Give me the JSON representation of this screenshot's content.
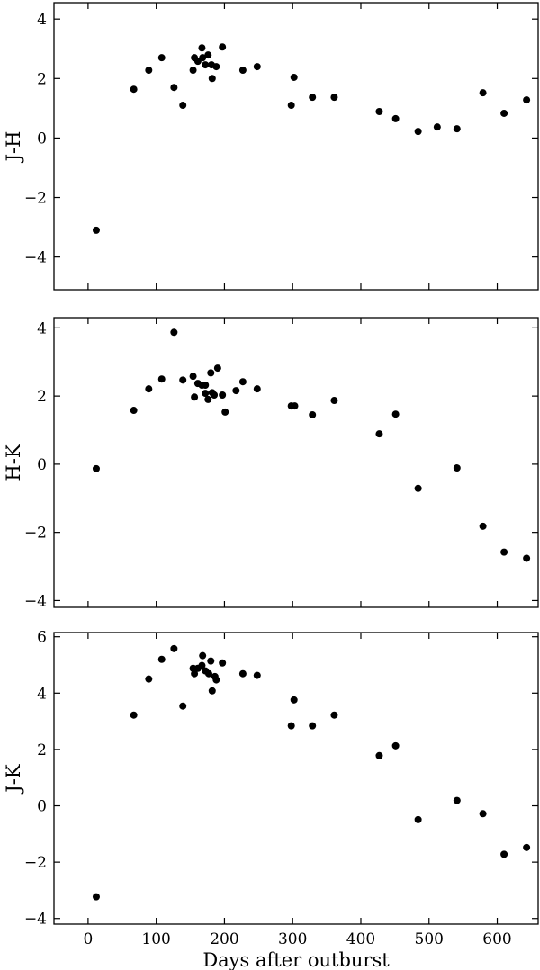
{
  "chart_data": [
    {
      "type": "scatter",
      "ylabel": "J-H",
      "color": "#000000",
      "x": [
        12,
        67,
        89,
        108,
        126,
        139,
        156,
        154,
        161,
        167,
        168,
        172,
        176,
        181,
        182,
        188,
        197,
        227,
        248,
        298,
        302,
        329,
        361,
        427,
        451,
        484,
        512,
        541,
        579,
        610,
        643
      ],
      "values": [
        -3.1,
        1.64,
        2.28,
        2.7,
        1.7,
        1.1,
        2.7,
        2.28,
        2.58,
        3.03,
        2.7,
        2.46,
        2.79,
        2.46,
        2.0,
        2.4,
        3.06,
        2.28,
        2.4,
        1.1,
        2.04,
        1.37,
        1.37,
        0.89,
        0.65,
        0.22,
        0.37,
        0.31,
        1.52,
        0.83,
        1.28
      ],
      "xlim": [
        -50,
        660
      ],
      "xticks": [
        0,
        100,
        200,
        300,
        400,
        500,
        600
      ],
      "ylim": [
        -5.1,
        4.55
      ],
      "yticks": [
        {
          "value": -4,
          "label": "−4"
        },
        {
          "value": -2,
          "label": "−2"
        },
        0,
        2,
        4
      ]
    },
    {
      "type": "scatter",
      "ylabel": "H-K",
      "color": "#000000",
      "x": [
        12,
        67,
        89,
        108,
        126,
        139,
        154,
        156,
        161,
        167,
        172,
        172,
        176,
        180,
        182,
        185,
        190,
        197,
        201,
        217,
        227,
        248,
        298,
        303,
        329,
        361,
        427,
        451,
        484,
        541,
        579,
        610,
        643
      ],
      "values": [
        -0.13,
        1.58,
        2.21,
        2.5,
        3.87,
        2.47,
        2.58,
        1.97,
        2.37,
        2.32,
        2.32,
        2.08,
        1.9,
        2.68,
        2.1,
        2.03,
        2.82,
        2.03,
        1.53,
        2.16,
        2.42,
        2.21,
        1.71,
        1.71,
        1.45,
        1.87,
        0.89,
        1.47,
        -0.71,
        -0.11,
        -1.82,
        -2.58,
        -2.76
      ],
      "xlim": [
        -50,
        660
      ],
      "xticks": [
        0,
        100,
        200,
        300,
        400,
        500,
        600
      ],
      "ylim": [
        -4.2,
        4.3
      ],
      "yticks": [
        {
          "value": -4,
          "label": "−4"
        },
        {
          "value": -2,
          "label": "−2"
        },
        0,
        2,
        4
      ]
    },
    {
      "type": "scatter",
      "ylabel": "J-K",
      "xlabel": "Days after outburst",
      "color": "#000000",
      "x": [
        12,
        67,
        89,
        108,
        126,
        139,
        154,
        156,
        161,
        167,
        168,
        172,
        177,
        180,
        182,
        188,
        186,
        197,
        227,
        248,
        298,
        302,
        329,
        361,
        427,
        451,
        484,
        541,
        579,
        610,
        643
      ],
      "values": [
        -3.23,
        3.22,
        4.5,
        5.2,
        5.58,
        3.54,
        4.88,
        4.69,
        4.88,
        4.98,
        5.33,
        4.79,
        4.69,
        5.14,
        4.08,
        4.47,
        4.59,
        5.07,
        4.69,
        4.63,
        2.84,
        3.76,
        2.84,
        3.22,
        1.78,
        2.13,
        -0.49,
        0.19,
        -0.28,
        -1.72,
        -1.48
      ],
      "xlim": [
        -50,
        660
      ],
      "xticks": [
        0,
        100,
        200,
        300,
        400,
        500,
        600
      ],
      "ylim": [
        -4.2,
        6.15
      ],
      "yticks": [
        {
          "value": -4,
          "label": "−4"
        },
        {
          "value": -2,
          "label": "−2"
        },
        0,
        2,
        4,
        6
      ]
    }
  ]
}
